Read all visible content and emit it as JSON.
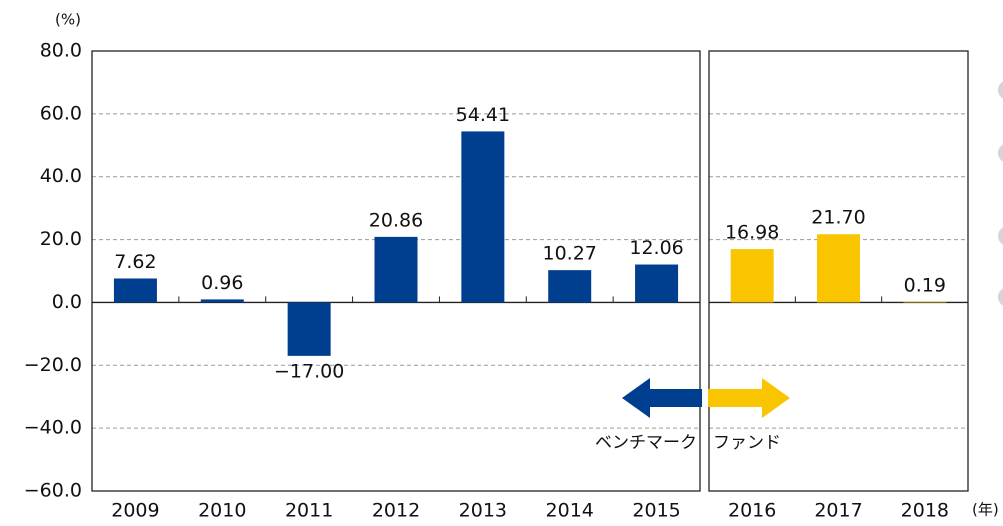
{
  "chart_data": {
    "type": "bar",
    "y_label": "(%)",
    "x_label": "(年)",
    "categories": [
      "2009",
      "2010",
      "2011",
      "2012",
      "2013",
      "2014",
      "2015",
      "2016",
      "2017",
      "2018"
    ],
    "series": [
      {
        "name": "ベンチマーク",
        "color": "#003f8f",
        "values": [
          7.62,
          0.96,
          -17.0,
          20.86,
          54.41,
          10.27,
          12.06,
          null,
          null,
          null
        ],
        "value_labels": [
          "7.62",
          "0.96",
          "−17.00",
          "20.86",
          "54.41",
          "10.27",
          "12.06",
          null,
          null,
          null
        ]
      },
      {
        "name": "ファンド",
        "color": "#f9c500",
        "values": [
          null,
          null,
          null,
          null,
          null,
          null,
          null,
          16.98,
          21.7,
          0.19
        ],
        "value_labels": [
          null,
          null,
          null,
          null,
          null,
          null,
          null,
          "16.98",
          "21.70",
          "0.19"
        ]
      }
    ],
    "ylim": [
      -60,
      80
    ],
    "yticks": [
      {
        "value": -60,
        "label": "−60.0"
      },
      {
        "value": -40,
        "label": "−40.0"
      },
      {
        "value": -20,
        "label": "−20.0"
      },
      {
        "value": 0,
        "label": "0.0"
      },
      {
        "value": 20,
        "label": "20.0"
      },
      {
        "value": 40,
        "label": "40.0"
      },
      {
        "value": 60,
        "label": "60.0"
      },
      {
        "value": 80,
        "label": "80.0"
      }
    ],
    "grid": true
  }
}
